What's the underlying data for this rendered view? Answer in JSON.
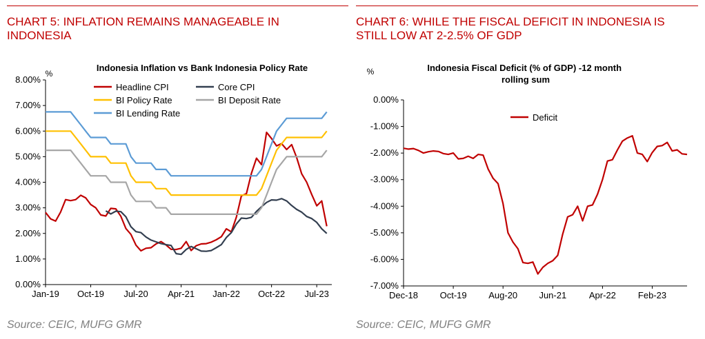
{
  "left_panel": {
    "heading": "CHART 5: INFLATION REMAINS MANAGEABLE IN INDONESIA",
    "source": "Source: CEIC, MUFG GMR"
  },
  "right_panel": {
    "heading": "CHART 6: WHILE THE FISCAL DEFICIT IN INDONESIA IS STILL LOW AT 2-2.5% OF GDP",
    "source": "Source: CEIC, MUFG GMR"
  },
  "colors": {
    "heading_red": "#c00000",
    "headline_cpi": "#c00000",
    "core_cpi": "#333f50",
    "bi_policy_rate": "#ffc000",
    "bi_deposit_rate": "#a6a6a6",
    "bi_lending_rate": "#5b9bd5",
    "deficit": "#c00000"
  },
  "chart_data": [
    {
      "type": "line",
      "title": "Indonesia Inflation vs Bank Indonesia Policy Rate",
      "ylabel": "%",
      "ylim": [
        0,
        8
      ],
      "yticks": [
        0,
        1,
        2,
        3,
        4,
        5,
        6,
        7,
        8
      ],
      "ytick_labels": [
        "0.00%",
        "1.00%",
        "2.00%",
        "3.00%",
        "4.00%",
        "5.00%",
        "6.00%",
        "7.00%",
        "8.00%"
      ],
      "xlim": [
        "2019-01",
        "2023-10"
      ],
      "xtick_labels": [
        "Jan-19",
        "Oct-19",
        "Jul-20",
        "Apr-21",
        "Jan-22",
        "Oct-22",
        "Jul-23"
      ],
      "xtick_dates": [
        "2019-01",
        "2019-10",
        "2020-07",
        "2021-04",
        "2022-01",
        "2022-10",
        "2023-07"
      ],
      "legend_position": "top",
      "grid": false,
      "series": [
        {
          "name": "Headline CPI",
          "color_key": "headline_cpi",
          "x": [
            "2019-01",
            "2019-02",
            "2019-03",
            "2019-04",
            "2019-05",
            "2019-06",
            "2019-07",
            "2019-08",
            "2019-09",
            "2019-10",
            "2019-11",
            "2019-12",
            "2020-01",
            "2020-02",
            "2020-03",
            "2020-04",
            "2020-05",
            "2020-06",
            "2020-07",
            "2020-08",
            "2020-09",
            "2020-10",
            "2020-11",
            "2020-12",
            "2021-01",
            "2021-02",
            "2021-03",
            "2021-04",
            "2021-05",
            "2021-06",
            "2021-07",
            "2021-08",
            "2021-09",
            "2021-10",
            "2021-11",
            "2021-12",
            "2022-01",
            "2022-02",
            "2022-03",
            "2022-04",
            "2022-05",
            "2022-06",
            "2022-07",
            "2022-08",
            "2022-09",
            "2022-10",
            "2022-11",
            "2022-12",
            "2023-01",
            "2023-02",
            "2023-03",
            "2023-04",
            "2023-05",
            "2023-06",
            "2023-07",
            "2023-08",
            "2023-09"
          ],
          "y": [
            2.82,
            2.57,
            2.48,
            2.83,
            3.32,
            3.28,
            3.32,
            3.49,
            3.39,
            3.13,
            3.0,
            2.72,
            2.68,
            2.98,
            2.96,
            2.67,
            2.19,
            1.96,
            1.54,
            1.32,
            1.42,
            1.44,
            1.59,
            1.68,
            1.55,
            1.38,
            1.37,
            1.42,
            1.68,
            1.33,
            1.52,
            1.59,
            1.6,
            1.66,
            1.75,
            1.87,
            2.18,
            2.06,
            2.64,
            3.47,
            3.55,
            4.35,
            4.94,
            4.69,
            5.95,
            5.71,
            5.42,
            5.51,
            5.28,
            5.47,
            4.97,
            4.33,
            4.0,
            3.52,
            3.08,
            3.27,
            2.28
          ]
        },
        {
          "name": "Core CPI",
          "color_key": "core_cpi",
          "x": [
            "2020-01",
            "2020-02",
            "2020-03",
            "2020-04",
            "2020-05",
            "2020-06",
            "2020-07",
            "2020-08",
            "2020-09",
            "2020-10",
            "2020-11",
            "2020-12",
            "2021-01",
            "2021-02",
            "2021-03",
            "2021-04",
            "2021-05",
            "2021-06",
            "2021-07",
            "2021-08",
            "2021-09",
            "2021-10",
            "2021-11",
            "2021-12",
            "2022-01",
            "2022-02",
            "2022-03",
            "2022-04",
            "2022-05",
            "2022-06",
            "2022-07",
            "2022-08",
            "2022-09",
            "2022-10",
            "2022-11",
            "2022-12",
            "2023-01",
            "2023-02",
            "2023-03",
            "2023-04",
            "2023-05",
            "2023-06",
            "2023-07",
            "2023-08",
            "2023-09"
          ],
          "y": [
            2.88,
            2.76,
            2.87,
            2.85,
            2.65,
            2.26,
            2.07,
            2.03,
            1.86,
            1.74,
            1.67,
            1.6,
            1.56,
            1.53,
            1.21,
            1.18,
            1.37,
            1.49,
            1.4,
            1.31,
            1.3,
            1.33,
            1.44,
            1.56,
            1.84,
            2.03,
            2.37,
            2.6,
            2.58,
            2.63,
            2.86,
            3.04,
            3.21,
            3.31,
            3.3,
            3.36,
            3.27,
            3.09,
            2.94,
            2.83,
            2.66,
            2.58,
            2.43,
            2.18,
            2.0
          ]
        },
        {
          "name": "BI Policy Rate",
          "color_key": "bi_policy_rate",
          "x": [
            "2019-01",
            "2019-06",
            "2019-07",
            "2019-08",
            "2019-09",
            "2019-10",
            "2019-11",
            "2020-01",
            "2020-02",
            "2020-05",
            "2020-06",
            "2020-07",
            "2020-10",
            "2020-11",
            "2021-01",
            "2021-02",
            "2022-07",
            "2022-08",
            "2022-09",
            "2022-10",
            "2022-11",
            "2022-12",
            "2023-01",
            "2023-08",
            "2023-09"
          ],
          "y": [
            6.0,
            6.0,
            5.75,
            5.5,
            5.25,
            5.0,
            5.0,
            5.0,
            4.75,
            4.75,
            4.25,
            4.0,
            4.0,
            3.75,
            3.75,
            3.5,
            3.5,
            3.75,
            4.25,
            4.75,
            5.25,
            5.5,
            5.75,
            5.75,
            6.0
          ]
        },
        {
          "name": "BI Deposit Rate",
          "color_key": "bi_deposit_rate",
          "x": [
            "2019-01",
            "2019-06",
            "2019-07",
            "2019-08",
            "2019-09",
            "2019-10",
            "2019-11",
            "2020-01",
            "2020-02",
            "2020-05",
            "2020-06",
            "2020-07",
            "2020-10",
            "2020-11",
            "2021-01",
            "2021-02",
            "2022-07",
            "2022-08",
            "2022-09",
            "2022-10",
            "2022-11",
            "2022-12",
            "2023-01",
            "2023-08",
            "2023-09"
          ],
          "y": [
            5.25,
            5.25,
            5.0,
            4.75,
            4.5,
            4.25,
            4.25,
            4.25,
            4.0,
            4.0,
            3.5,
            3.25,
            3.25,
            3.0,
            3.0,
            2.75,
            2.75,
            3.0,
            3.5,
            4.0,
            4.5,
            4.75,
            5.0,
            5.0,
            5.25
          ]
        },
        {
          "name": "BI Lending Rate",
          "color_key": "bi_lending_rate",
          "x": [
            "2019-01",
            "2019-06",
            "2019-07",
            "2019-08",
            "2019-09",
            "2019-10",
            "2019-11",
            "2020-01",
            "2020-02",
            "2020-05",
            "2020-06",
            "2020-07",
            "2020-10",
            "2020-11",
            "2021-01",
            "2021-02",
            "2022-07",
            "2022-08",
            "2022-09",
            "2022-10",
            "2022-11",
            "2022-12",
            "2023-01",
            "2023-08",
            "2023-09"
          ],
          "y": [
            6.75,
            6.75,
            6.5,
            6.25,
            6.0,
            5.75,
            5.75,
            5.75,
            5.5,
            5.5,
            5.0,
            4.75,
            4.75,
            4.5,
            4.5,
            4.25,
            4.25,
            4.5,
            5.0,
            5.5,
            6.0,
            6.25,
            6.5,
            6.5,
            6.75
          ]
        }
      ]
    },
    {
      "type": "line",
      "title": "Indonesia Fiscal Deficit (% of GDP) - 12 month rolling sum",
      "ylabel": "%",
      "ylim": [
        -7,
        0
      ],
      "yticks": [
        0,
        -1,
        -2,
        -3,
        -4,
        -5,
        -6,
        -7
      ],
      "ytick_labels": [
        "0.00%",
        "-1.00%",
        "-2.00%",
        "-3.00%",
        "-4.00%",
        "-5.00%",
        "-6.00%",
        "-7.00%"
      ],
      "xlim": [
        "2018-12",
        "2023-09"
      ],
      "xtick_labels": [
        "Dec-18",
        "Oct-19",
        "Aug-20",
        "Jun-21",
        "Apr-22",
        "Feb-23"
      ],
      "xtick_dates": [
        "2018-12",
        "2019-10",
        "2020-08",
        "2021-06",
        "2022-04",
        "2023-02"
      ],
      "legend_position": "top-center",
      "grid": false,
      "series": [
        {
          "name": "Deficit",
          "color_key": "deficit",
          "x": [
            "2018-12",
            "2019-01",
            "2019-02",
            "2019-03",
            "2019-04",
            "2019-05",
            "2019-06",
            "2019-07",
            "2019-08",
            "2019-09",
            "2019-10",
            "2019-11",
            "2019-12",
            "2020-01",
            "2020-02",
            "2020-03",
            "2020-04",
            "2020-05",
            "2020-06",
            "2020-07",
            "2020-08",
            "2020-09",
            "2020-10",
            "2020-11",
            "2020-12",
            "2021-01",
            "2021-02",
            "2021-03",
            "2021-04",
            "2021-05",
            "2021-06",
            "2021-07",
            "2021-08",
            "2021-09",
            "2021-10",
            "2021-11",
            "2021-12",
            "2022-01",
            "2022-02",
            "2022-03",
            "2022-04",
            "2022-05",
            "2022-06",
            "2022-07",
            "2022-08",
            "2022-09",
            "2022-10",
            "2022-11",
            "2022-12",
            "2023-01",
            "2023-02",
            "2023-03",
            "2023-04",
            "2023-05",
            "2023-06",
            "2023-07",
            "2023-08",
            "2023-09"
          ],
          "y": [
            -1.82,
            -1.85,
            -1.83,
            -1.9,
            -2.0,
            -1.95,
            -1.92,
            -1.94,
            -2.02,
            -2.05,
            -2.0,
            -2.22,
            -2.2,
            -2.12,
            -2.2,
            -2.05,
            -2.08,
            -2.6,
            -2.95,
            -3.15,
            -3.9,
            -5.0,
            -5.35,
            -5.6,
            -6.12,
            -6.15,
            -6.1,
            -6.55,
            -6.3,
            -6.15,
            -6.05,
            -5.85,
            -5.05,
            -4.4,
            -4.32,
            -4.0,
            -4.55,
            -4.0,
            -3.95,
            -3.55,
            -3.0,
            -2.3,
            -2.25,
            -1.88,
            -1.55,
            -1.43,
            -1.35,
            -2.0,
            -2.05,
            -2.32,
            -1.98,
            -1.75,
            -1.72,
            -1.6,
            -1.92,
            -1.88,
            -2.03,
            -2.05
          ]
        }
      ]
    }
  ]
}
